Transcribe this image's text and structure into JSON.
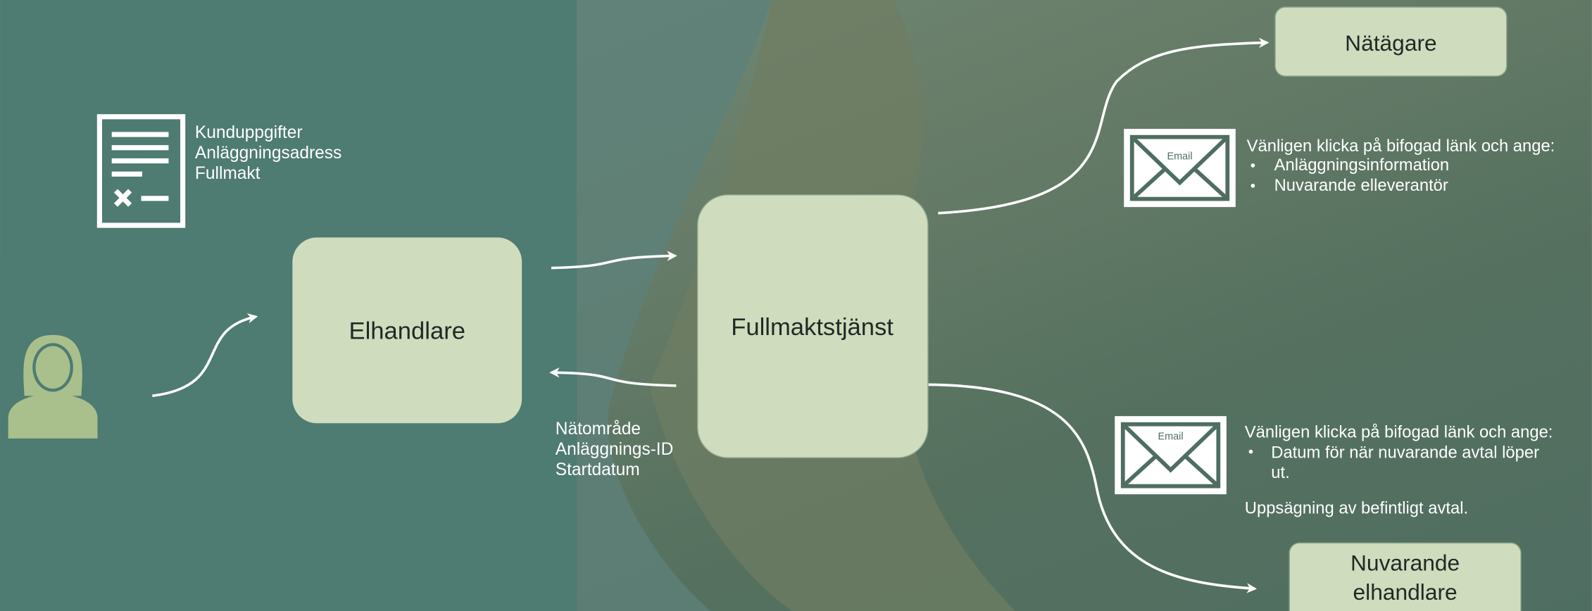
{
  "document": {
    "lines": [
      "Kunduppgifter",
      "Anläggningsadress",
      "Fullmakt"
    ]
  },
  "nodes": [
    {
      "label": "Elhandlare"
    },
    {
      "label": "Fullmaktstjänst"
    },
    {
      "label": "Nätägare"
    },
    {
      "label": [
        "Nuvarande",
        "elhandlare"
      ]
    }
  ],
  "return_info": {
    "lines": [
      "Nätområde",
      "Anläggnings-ID",
      "Startdatum"
    ]
  },
  "emails": [
    {
      "icon": "Email",
      "intro": "Vänligen klicka på bifogad länk och ange:",
      "bullets": [
        [
          "Anläggningsinformation"
        ],
        [
          "Nuvarande elleverantör"
        ]
      ]
    },
    {
      "icon": "Email",
      "intro": "Vänligen klicka på bifogad länk och ange:",
      "bullets": [
        [
          "Datum för när nuvarande avtal löper",
          "ut."
        ]
      ],
      "note": "Uppsägning av befintligt avtal."
    }
  ]
}
